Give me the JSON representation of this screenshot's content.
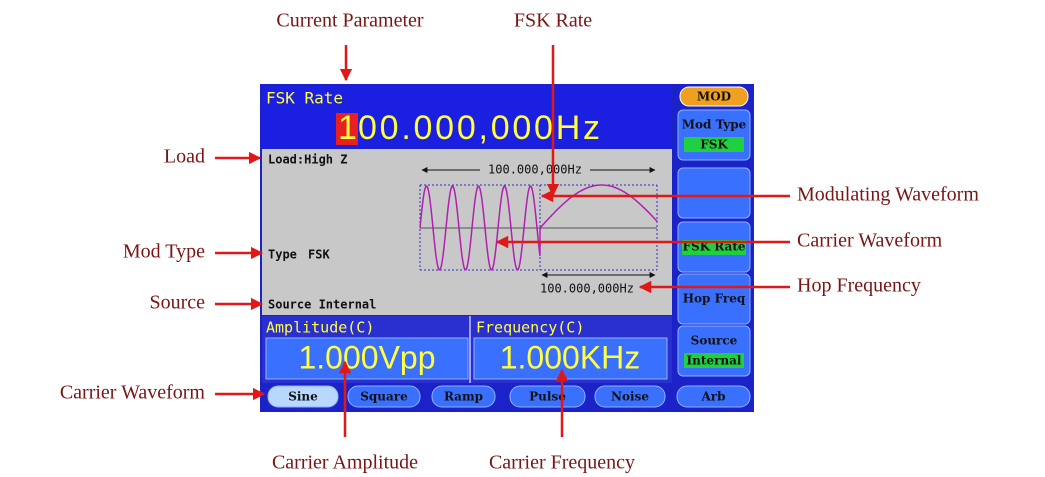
{
  "annotations": [
    "Current Parameter",
    "FSK Rate",
    "Load",
    "Mod Type",
    "Source",
    "Carrier Waveform",
    "Modulating Waveform",
    "Carrier Waveform",
    "Hop Frequency",
    "Carrier Amplitude",
    "Carrier Frequency"
  ],
  "screen": {
    "parameter_name": "FSK Rate",
    "parameter_cursor": "1",
    "parameter_value": "00.000,000Hz",
    "load": "Load:High Z",
    "type_label": "Type",
    "type_value": "FSK",
    "source": "Source Internal",
    "rate_marker": "100.000,000Hz",
    "hop_marker": "100.000,000Hz",
    "amplitude_label": "Amplitude(C)",
    "amplitude_value": "1.000Vpp",
    "frequency_label": "Frequency(C)",
    "frequency_value": "1.000KHz",
    "waveforms": [
      "Sine",
      "Square",
      "Ramp",
      "Pulse",
      "Noise",
      "Arb"
    ],
    "menu_title": "MOD",
    "menu": [
      {
        "label": "Mod Type",
        "value": "FSK"
      },
      {
        "label": "FSK Rate"
      },
      {
        "label": "Hop Freq"
      },
      {
        "label": "Source",
        "value": "Internal"
      }
    ]
  }
}
